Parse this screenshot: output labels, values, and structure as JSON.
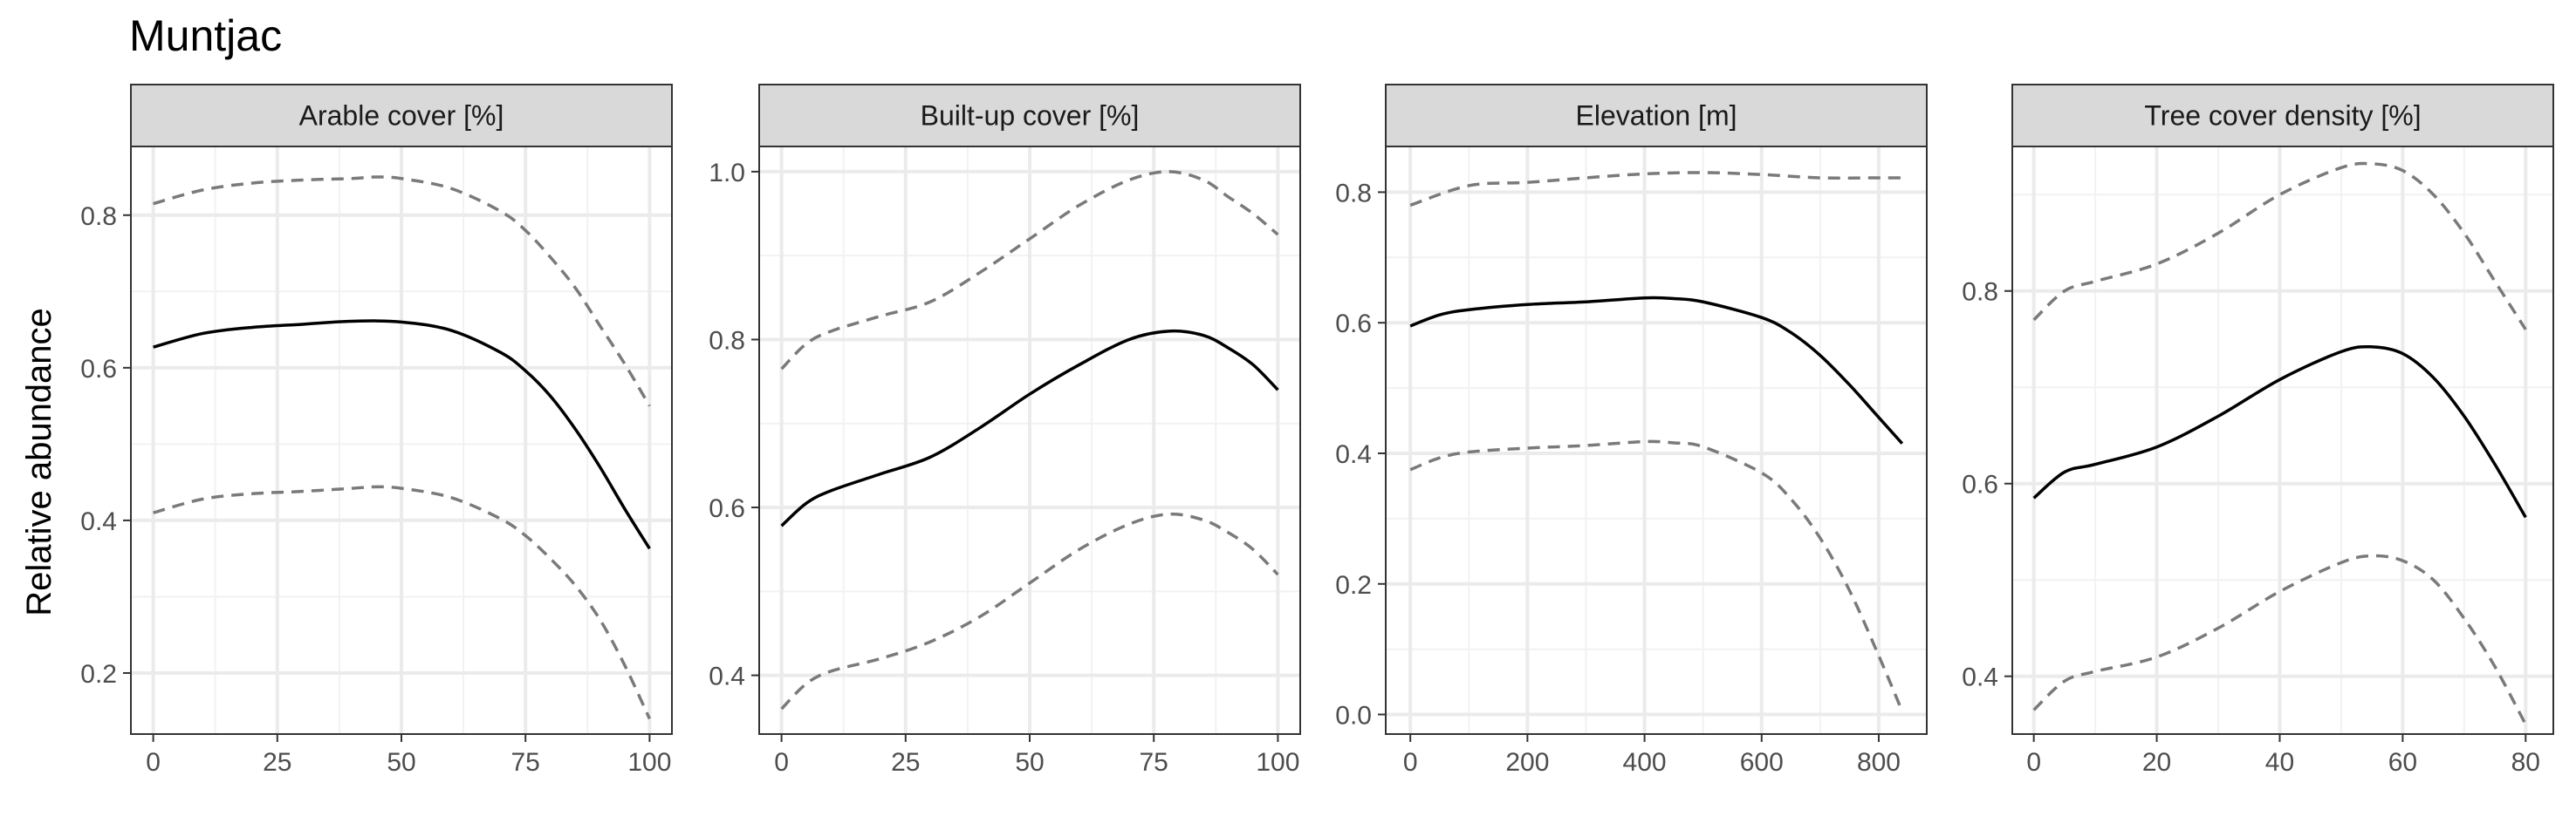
{
  "chart_data": {
    "type": "line",
    "title": "Muntjac",
    "ylabel": "Relative abundance",
    "grid": true,
    "line_styles": {
      "estimate": "#000000",
      "interval": "#7a7a7a"
    },
    "panels": [
      {
        "strip_label": "Arable cover [%]",
        "xlim": [
          -4.5,
          104.5
        ],
        "ylim": [
          0.12,
          0.89
        ],
        "x_ticks": [
          0,
          25,
          50,
          75,
          100
        ],
        "x_tick_labels": [
          "0",
          "25",
          "50",
          "75",
          "100"
        ],
        "y_ticks": [
          0.2,
          0.4,
          0.6,
          0.8
        ],
        "y_tick_labels": [
          "0.2",
          "0.4",
          "0.6",
          "0.8"
        ],
        "series": [
          {
            "x": [
              0,
              10,
              20,
              30,
              40,
              45,
              50,
              60,
              70,
              75,
              80,
              85,
              90,
              95,
              100
            ],
            "y": [
              0.815,
              0.833,
              0.842,
              0.846,
              0.848,
              0.85,
              0.848,
              0.835,
              0.805,
              0.78,
              0.745,
              0.705,
              0.655,
              0.605,
              0.55
            ]
          },
          {
            "x": [
              0,
              10,
              20,
              30,
              40,
              50,
              60,
              70,
              75,
              80,
              85,
              90,
              95,
              100
            ],
            "y": [
              0.627,
              0.645,
              0.653,
              0.657,
              0.661,
              0.66,
              0.649,
              0.62,
              0.596,
              0.563,
              0.52,
              0.47,
              0.415,
              0.363
            ]
          },
          {
            "x": [
              0,
              10,
              20,
              30,
              40,
              45,
              50,
              60,
              70,
              75,
              80,
              85,
              90,
              95,
              100
            ],
            "y": [
              0.41,
              0.428,
              0.435,
              0.438,
              0.442,
              0.444,
              0.442,
              0.43,
              0.402,
              0.38,
              0.35,
              0.315,
              0.27,
              0.21,
              0.14
            ]
          }
        ]
      },
      {
        "strip_label": "Built-up cover [%]",
        "xlim": [
          -4.5,
          104.5
        ],
        "ylim": [
          0.33,
          1.03
        ],
        "x_ticks": [
          0,
          25,
          50,
          75,
          100
        ],
        "x_tick_labels": [
          "0",
          "25",
          "50",
          "75",
          "100"
        ],
        "y_ticks": [
          0.4,
          0.6,
          0.8,
          1.0
        ],
        "y_tick_labels": [
          "0.4",
          "0.6",
          "0.8",
          "1.0"
        ],
        "series": [
          {
            "x": [
              0,
              5,
              10,
              20,
              30,
              40,
              50,
              60,
              70,
              78,
              85,
              90,
              95,
              100
            ],
            "y": [
              0.765,
              0.795,
              0.81,
              0.828,
              0.845,
              0.88,
              0.92,
              0.96,
              0.99,
              1.0,
              0.99,
              0.97,
              0.95,
              0.925
            ]
          },
          {
            "x": [
              0,
              5,
              10,
              20,
              30,
              40,
              50,
              60,
              70,
              78,
              85,
              90,
              95,
              100
            ],
            "y": [
              0.578,
              0.605,
              0.62,
              0.64,
              0.66,
              0.695,
              0.735,
              0.77,
              0.8,
              0.81,
              0.805,
              0.79,
              0.77,
              0.74
            ]
          },
          {
            "x": [
              0,
              5,
              10,
              20,
              30,
              40,
              50,
              60,
              70,
              78,
              85,
              90,
              95,
              100
            ],
            "y": [
              0.36,
              0.39,
              0.405,
              0.42,
              0.44,
              0.47,
              0.51,
              0.55,
              0.58,
              0.592,
              0.585,
              0.57,
              0.55,
              0.52
            ]
          }
        ]
      },
      {
        "strip_label": "Elevation [m]",
        "xlim": [
          -42,
          882
        ],
        "ylim": [
          -0.03,
          0.87
        ],
        "x_ticks": [
          0,
          200,
          400,
          600,
          800
        ],
        "x_tick_labels": [
          "0",
          "200",
          "400",
          "600",
          "800"
        ],
        "y_ticks": [
          0.0,
          0.2,
          0.4,
          0.6,
          0.8
        ],
        "y_tick_labels": [
          "0.0",
          "0.2",
          "0.4",
          "0.6",
          "0.8"
        ],
        "series": [
          {
            "x": [
              0,
              100,
              200,
              300,
              400,
              500,
              600,
              700,
              800,
              840
            ],
            "y": [
              0.78,
              0.81,
              0.815,
              0.822,
              0.828,
              0.83,
              0.827,
              0.822,
              0.822,
              0.822
            ]
          },
          {
            "x": [
              0,
              50,
              100,
              200,
              300,
              400,
              450,
              500,
              600,
              650,
              700,
              750,
              800,
              840
            ],
            "y": [
              0.595,
              0.612,
              0.62,
              0.628,
              0.632,
              0.638,
              0.637,
              0.632,
              0.608,
              0.585,
              0.55,
              0.505,
              0.455,
              0.415
            ]
          },
          {
            "x": [
              0,
              50,
              100,
              200,
              300,
              400,
              450,
              500,
              600,
              650,
              700,
              750,
              800,
              840
            ],
            "y": [
              0.375,
              0.393,
              0.402,
              0.408,
              0.412,
              0.418,
              0.416,
              0.41,
              0.37,
              0.33,
              0.27,
              0.19,
              0.09,
              0.005
            ]
          }
        ]
      },
      {
        "strip_label": "Tree cover density [%]",
        "xlim": [
          -3.5,
          84.5
        ],
        "ylim": [
          0.34,
          0.95
        ],
        "x_ticks": [
          0,
          20,
          40,
          60,
          80
        ],
        "x_tick_labels": [
          "0",
          "20",
          "40",
          "60",
          "80"
        ],
        "y_ticks": [
          0.4,
          0.6,
          0.8
        ],
        "y_tick_labels": [
          "0.4",
          "0.6",
          "0.8"
        ],
        "series": [
          {
            "x": [
              0,
              5,
              10,
              20,
              30,
              40,
              50,
              55,
              60,
              65,
              70,
              75,
              80
            ],
            "y": [
              0.77,
              0.8,
              0.81,
              0.828,
              0.86,
              0.9,
              0.928,
              0.932,
              0.925,
              0.9,
              0.86,
              0.81,
              0.76
            ]
          },
          {
            "x": [
              0,
              5,
              10,
              20,
              30,
              40,
              50,
              55,
              60,
              65,
              70,
              75,
              80
            ],
            "y": [
              0.585,
              0.612,
              0.62,
              0.638,
              0.67,
              0.708,
              0.737,
              0.742,
              0.735,
              0.71,
              0.67,
              0.62,
              0.565
            ]
          },
          {
            "x": [
              0,
              5,
              10,
              20,
              30,
              40,
              50,
              55,
              60,
              65,
              70,
              75,
              80
            ],
            "y": [
              0.365,
              0.395,
              0.405,
              0.42,
              0.45,
              0.488,
              0.518,
              0.525,
              0.52,
              0.5,
              0.46,
              0.41,
              0.35
            ]
          }
        ]
      }
    ]
  }
}
